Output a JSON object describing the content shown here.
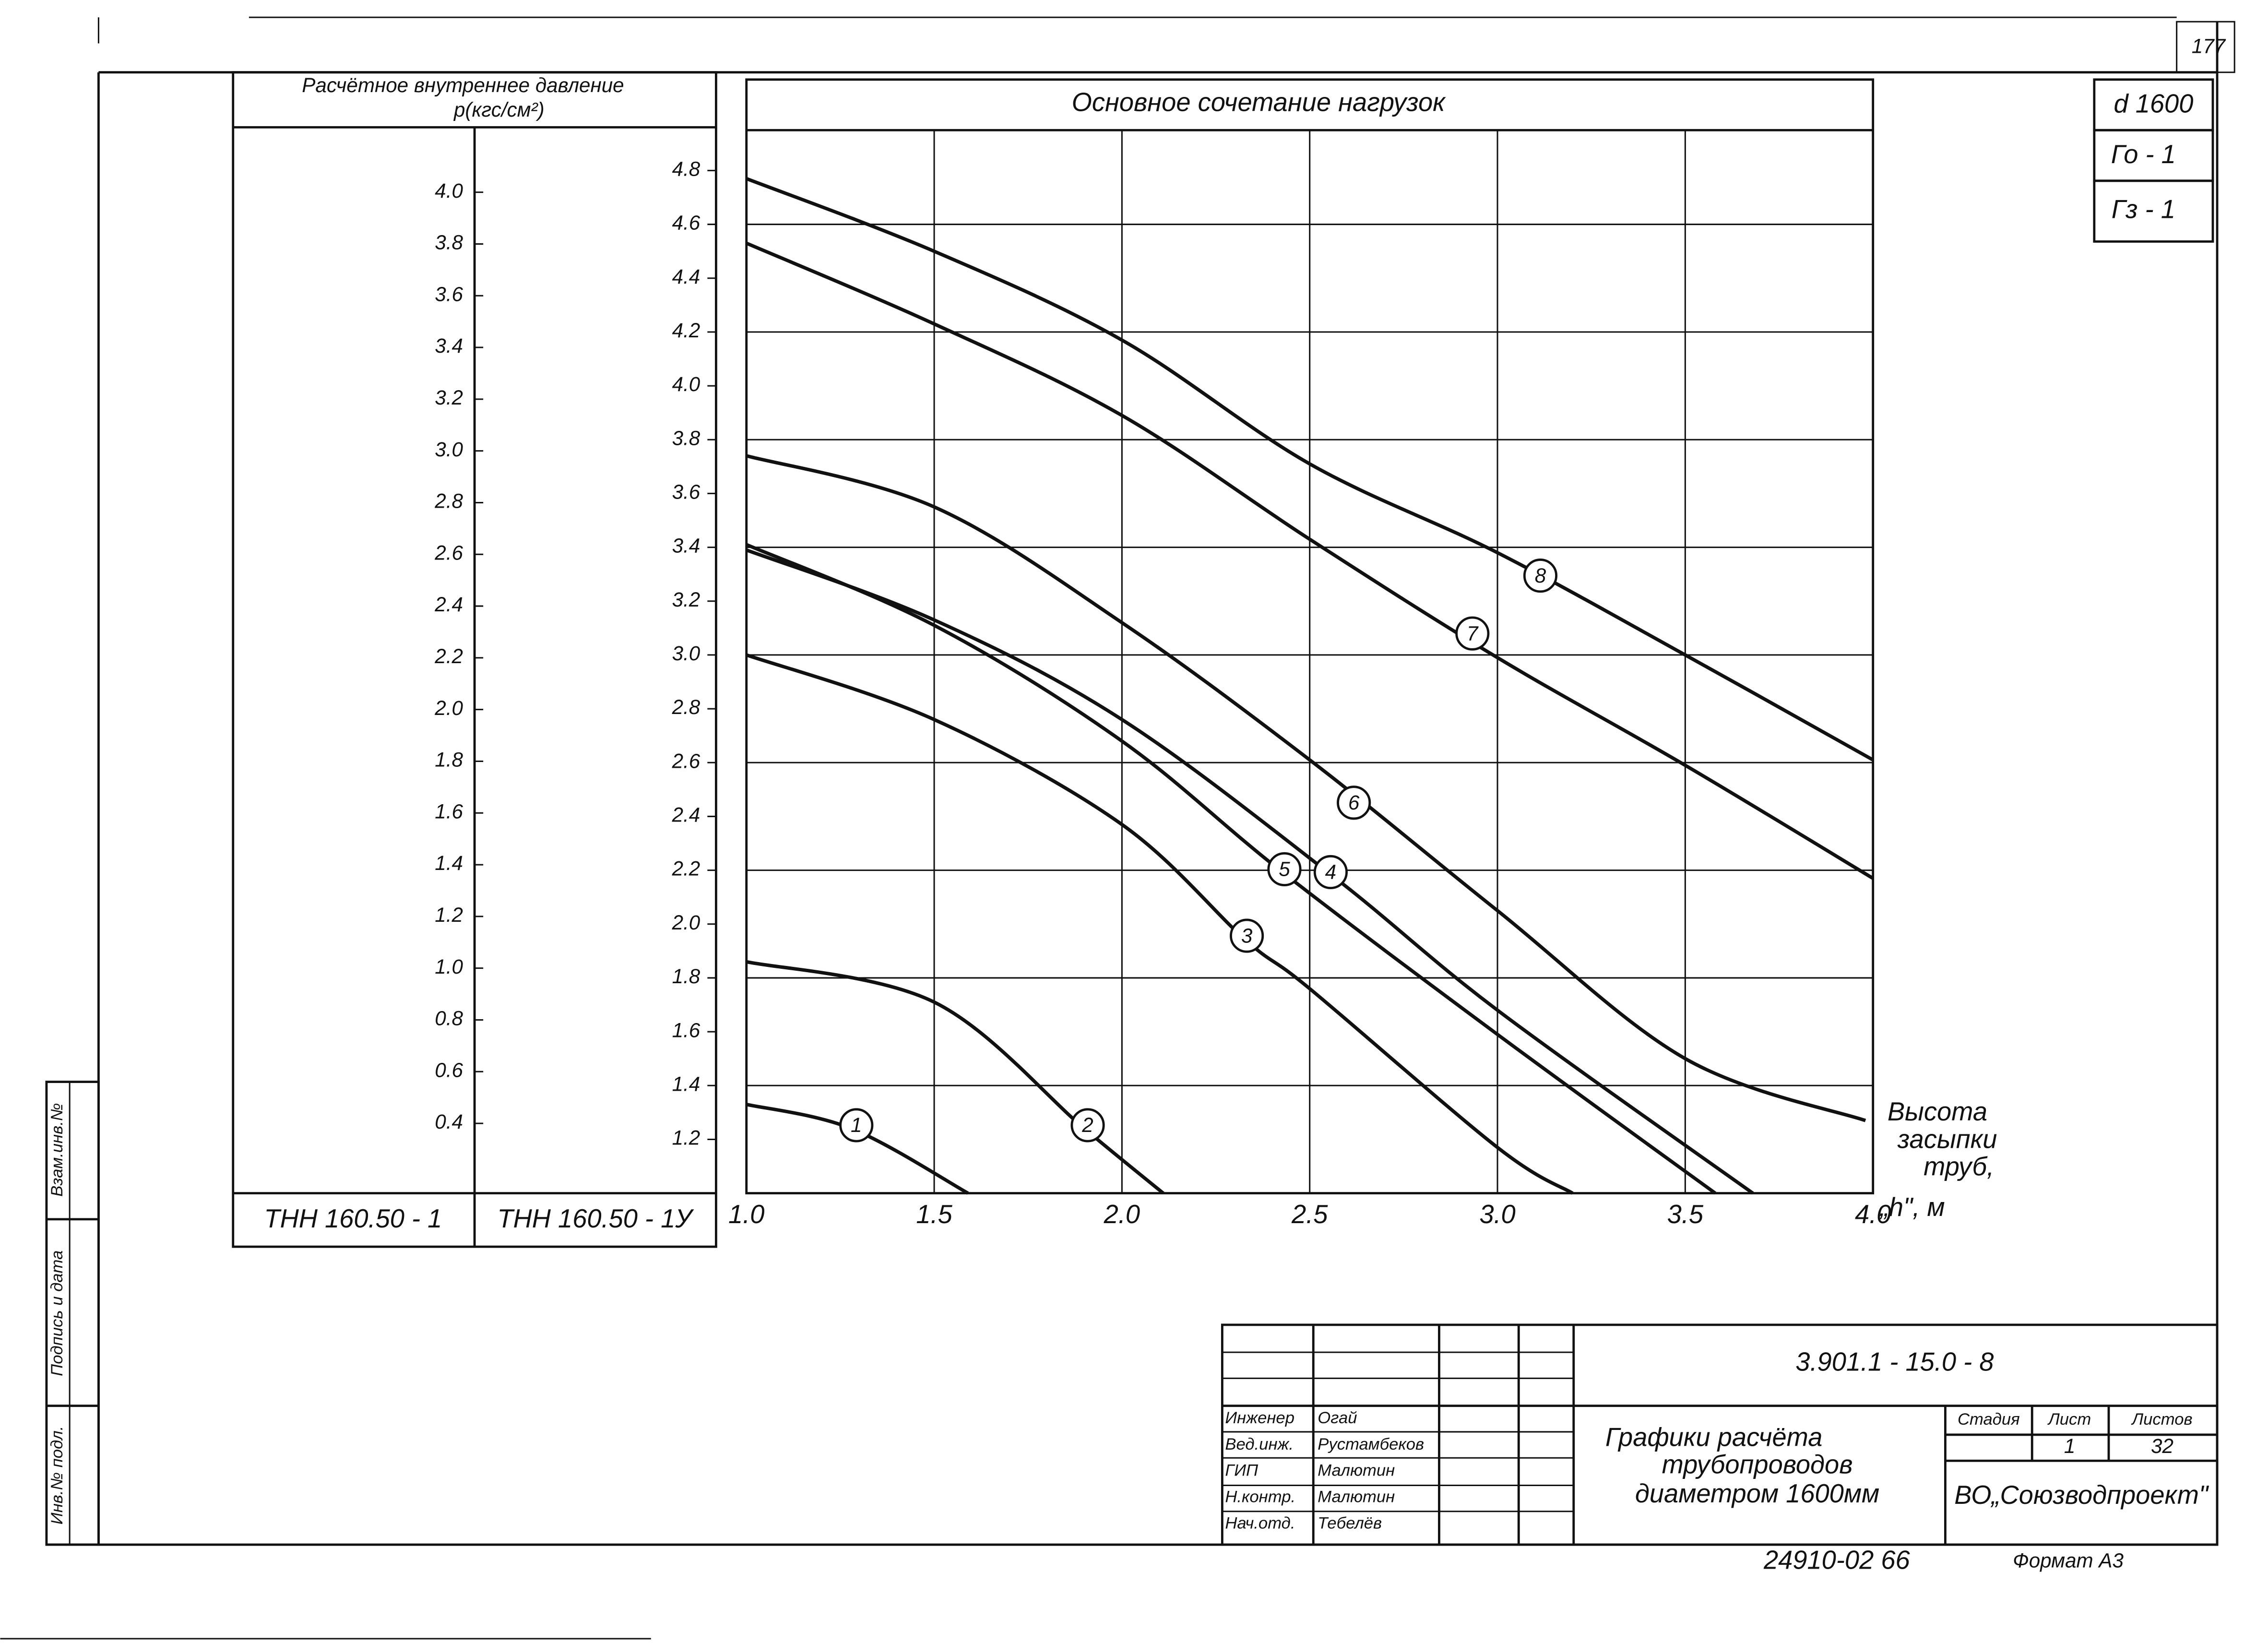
{
  "page_number": "177",
  "marks": [
    "d 1600",
    "Го - 1",
    "Гз - 1"
  ],
  "side_stamp": [
    "Взам.инв.№",
    "Подпись и дата",
    "Инв.№ подл."
  ],
  "chart_data": {
    "type": "line",
    "title": "Основное сочетание нагрузок",
    "y_axis_label": [
      "Расчётное внутреннее давление",
      "р(кгс/см²)"
    ],
    "x_axis_label": [
      "Высота",
      "засыпки",
      "труб,",
      "„h\", м"
    ],
    "column_labels": [
      "ТНН 160.50 - 1",
      "ТНН 160.50 - 1У"
    ],
    "xlim": [
      1,
      4
    ],
    "xticks": [
      {
        "value": 1,
        "label": "1.0"
      },
      1.5,
      {
        "value": 2,
        "label": "2.0"
      },
      2.5,
      {
        "value": 3,
        "label": "3.0"
      },
      3.5,
      {
        "value": 4,
        "label": "4.0"
      }
    ],
    "ylim": [
      1.0,
      4.95
    ],
    "yticks": [
      1.2,
      1.4,
      1.6,
      1.8,
      {
        "value": 2,
        "label": "2.0"
      },
      2.2,
      2.4,
      2.6,
      2.8,
      {
        "value": 3,
        "label": "3.0"
      },
      3.2,
      3.4,
      3.6,
      3.8,
      {
        "value": 4,
        "label": "4.0"
      },
      4.2,
      4.4,
      4.6,
      4.8
    ],
    "ygrid": [
      4.6,
      4.2,
      3.8,
      3.4,
      3.0,
      2.6,
      2.2,
      1.8,
      1.4
    ],
    "y2lim": [
      0.13,
      4.24
    ],
    "y2ticks": [
      0.4,
      0.6,
      0.8,
      {
        "value": 1,
        "label": "1.0"
      },
      1.2,
      1.4,
      1.6,
      1.8,
      {
        "value": 2,
        "label": "2.0"
      },
      2.2,
      2.4,
      2.6,
      2.8,
      {
        "value": 3,
        "label": "3.0"
      },
      3.2,
      3.4,
      3.6,
      3.8,
      {
        "value": 4,
        "label": "4.0"
      }
    ],
    "grid": true,
    "series": [
      {
        "name": "1",
        "color": "#111111",
        "x": [
          1.0,
          1.28,
          1.59
        ],
        "values": [
          1.33,
          1.24,
          1.0
        ]
      },
      {
        "name": "2",
        "color": "#111111",
        "x": [
          1.0,
          1.5,
          1.9,
          2.11
        ],
        "values": [
          1.86,
          1.71,
          1.24,
          1.0
        ]
      },
      {
        "name": "3",
        "color": "#111111",
        "x": [
          1.0,
          1.5,
          2.0,
          2.33,
          2.5,
          3.0,
          3.2
        ],
        "values": [
          3.0,
          2.76,
          2.37,
          1.94,
          1.76,
          1.17,
          1.0
        ]
      },
      {
        "name": "4",
        "color": "#111111",
        "x": [
          1.0,
          1.5,
          2.0,
          2.56,
          3.0,
          3.68
        ],
        "values": [
          3.39,
          3.13,
          2.76,
          2.18,
          1.68,
          1.0
        ]
      },
      {
        "name": "5",
        "color": "#111111",
        "x": [
          1.0,
          1.5,
          2.0,
          2.43,
          3.0,
          3.58
        ],
        "values": [
          3.41,
          3.11,
          2.68,
          2.19,
          1.59,
          1.0
        ]
      },
      {
        "name": "6",
        "color": "#111111",
        "x": [
          1.0,
          1.5,
          2.0,
          2.5,
          3.0,
          3.5,
          3.98
        ],
        "values": [
          3.74,
          3.55,
          3.12,
          2.61,
          2.05,
          1.5,
          1.27
        ]
      },
      {
        "name": "7",
        "color": "#111111",
        "x": [
          1.0,
          1.5,
          2.0,
          2.5,
          3.0,
          3.5,
          4.0
        ],
        "values": [
          4.53,
          4.23,
          3.89,
          3.43,
          2.99,
          2.59,
          2.17
        ]
      },
      {
        "name": "8",
        "color": "#111111",
        "x": [
          1.0,
          1.5,
          2.0,
          2.5,
          3.0,
          3.5,
          4.0
        ],
        "values": [
          4.77,
          4.5,
          4.17,
          3.71,
          3.38,
          3.0,
          2.61
        ]
      }
    ]
  },
  "title_block": {
    "code": "3.901.1 - 15.0 - 8",
    "title": [
      "Графики расчёта",
      "трубопроводов",
      "диаметром 1600мм"
    ],
    "headers": [
      "Стадия",
      "Лист",
      "Листов"
    ],
    "sheet": "1",
    "sheets": "32",
    "organization": "ВО„Союзводпроект\"",
    "staff": [
      {
        "role": "Инженер",
        "name": "Огай"
      },
      {
        "role": "Вед.инж.",
        "name": "Рустамбеков"
      },
      {
        "role": "ГИП",
        "name": "Малютин"
      },
      {
        "role": "Н.контр.",
        "name": "Малютин"
      },
      {
        "role": "Нач.отд.",
        "name": "Тебелёв"
      }
    ]
  },
  "footer": {
    "number": "24910-02  66",
    "format": "Формат А3"
  }
}
